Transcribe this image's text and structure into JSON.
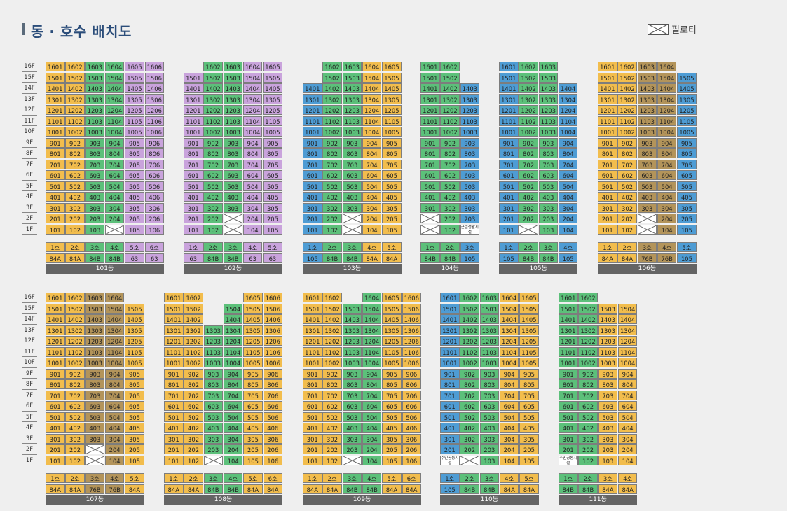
{
  "title": "동 · 호수 배치도",
  "legend": {
    "label": "필로티",
    "icon": "x-box-icon"
  },
  "floor_labels": [
    "16F",
    "15F",
    "14F",
    "13F",
    "12F",
    "11F",
    "10F",
    "9F",
    "8F",
    "7F",
    "6F",
    "5F",
    "4F",
    "3F",
    "2F",
    "1F"
  ],
  "colors": {
    "orange": "#f2bd4d",
    "green": "#5cc07a",
    "blue": "#4e9cd4",
    "purple": "#c9a3dc",
    "khaki": "#b3945a"
  },
  "buildings": [
    {
      "id": "101",
      "name": "101동",
      "units": [
        {
          "line": "1호",
          "type": "84A",
          "color": "o",
          "top": 16
        },
        {
          "line": "2호",
          "type": "84A",
          "color": "o",
          "top": 16
        },
        {
          "line": "3호",
          "type": "84B",
          "color": "g",
          "top": 16
        },
        {
          "line": "4호",
          "type": "84B",
          "color": "g",
          "top": 16,
          "piloti": [
            1
          ]
        },
        {
          "line": "5호",
          "type": "63",
          "color": "p",
          "top": 16
        },
        {
          "line": "6호",
          "type": "63",
          "color": "p",
          "top": 16
        }
      ]
    },
    {
      "id": "102",
      "name": "102동",
      "units": [
        {
          "line": "1호",
          "type": "63",
          "color": "p",
          "top": 15
        },
        {
          "line": "2호",
          "type": "84B",
          "color": "g",
          "top": 16
        },
        {
          "line": "3호",
          "type": "84B",
          "color": "g",
          "top": 16,
          "piloti": [
            1,
            2
          ]
        },
        {
          "line": "4호",
          "type": "63",
          "color": "p",
          "top": 16
        },
        {
          "line": "5호",
          "type": "63",
          "color": "p",
          "top": 16
        }
      ]
    },
    {
      "id": "103",
      "name": "103동",
      "units": [
        {
          "line": "1호",
          "type": "105",
          "color": "b",
          "top": 14
        },
        {
          "line": "2호",
          "type": "84B",
          "color": "g",
          "top": 16
        },
        {
          "line": "3호",
          "type": "84B",
          "color": "g",
          "top": 16,
          "piloti": [
            1,
            2
          ]
        },
        {
          "line": "4호",
          "type": "84A",
          "color": "o",
          "top": 16
        },
        {
          "line": "5호",
          "type": "84A",
          "color": "o",
          "top": 16
        }
      ]
    },
    {
      "id": "104",
      "name": "104동",
      "units": [
        {
          "line": "1호",
          "type": "84B",
          "color": "g",
          "top": 16,
          "piloti": [
            1,
            2
          ]
        },
        {
          "line": "2호",
          "type": "84B",
          "color": "g",
          "top": 16
        },
        {
          "line": "3호",
          "type": "105",
          "color": "b",
          "top": 14,
          "notes": {
            "1": "근린생활시설"
          }
        }
      ]
    },
    {
      "id": "105",
      "name": "105동",
      "units": [
        {
          "line": "1호",
          "type": "105",
          "color": "b",
          "top": 16
        },
        {
          "line": "2호",
          "type": "84B",
          "color": "g",
          "top": 16,
          "piloti": [
            1
          ]
        },
        {
          "line": "3호",
          "type": "84B",
          "color": "g",
          "top": 16
        },
        {
          "line": "4호",
          "type": "105",
          "color": "b",
          "top": 14
        }
      ]
    },
    {
      "id": "106",
      "name": "106동",
      "units": [
        {
          "line": "1호",
          "type": "84A",
          "color": "o",
          "top": 16
        },
        {
          "line": "2호",
          "type": "84A",
          "color": "o",
          "top": 16
        },
        {
          "line": "3호",
          "type": "76B",
          "color": "k",
          "top": 16,
          "piloti": [
            1,
            2
          ]
        },
        {
          "line": "4호",
          "type": "76B",
          "color": "k",
          "top": 16
        },
        {
          "line": "5호",
          "type": "105",
          "color": "b",
          "top": 15
        }
      ]
    },
    {
      "id": "107",
      "name": "107동",
      "units": [
        {
          "line": "1호",
          "type": "84A",
          "color": "o",
          "top": 16
        },
        {
          "line": "2호",
          "type": "84A",
          "color": "o",
          "top": 16
        },
        {
          "line": "3호",
          "type": "76B",
          "color": "k",
          "top": 16,
          "piloti": [
            1,
            2
          ]
        },
        {
          "line": "4호",
          "type": "76B",
          "color": "k",
          "top": 16
        },
        {
          "line": "5호",
          "type": "84A",
          "color": "o",
          "top": 15
        }
      ]
    },
    {
      "id": "108",
      "name": "108동",
      "units": [
        {
          "line": "1호",
          "type": "84A",
          "color": "o",
          "top": 16
        },
        {
          "line": "2호",
          "type": "84A",
          "color": "o",
          "top": 16
        },
        {
          "line": "3호",
          "type": "84B",
          "color": "g",
          "top": 13,
          "piloti": [
            1
          ]
        },
        {
          "line": "4호",
          "type": "84B",
          "color": "g",
          "top": 15
        },
        {
          "line": "5호",
          "type": "84A",
          "color": "o",
          "top": 16
        },
        {
          "line": "6호",
          "type": "84A",
          "color": "o",
          "top": 16
        }
      ]
    },
    {
      "id": "109",
      "name": "109동",
      "units": [
        {
          "line": "1호",
          "type": "84A",
          "color": "o",
          "top": 16
        },
        {
          "line": "2호",
          "type": "84A",
          "color": "o",
          "top": 16
        },
        {
          "line": "3호",
          "type": "84B",
          "color": "g",
          "top": 15,
          "piloti": [
            1
          ]
        },
        {
          "line": "4호",
          "type": "84B",
          "color": "g",
          "top": 16
        },
        {
          "line": "5호",
          "type": "84A",
          "color": "o",
          "top": 16
        },
        {
          "line": "6호",
          "type": "84A",
          "color": "o",
          "top": 16
        }
      ]
    },
    {
      "id": "110",
      "name": "110동",
      "units": [
        {
          "line": "1호",
          "type": "105",
          "color": "b",
          "top": 16,
          "notes": {
            "1": "주민공동시설"
          }
        },
        {
          "line": "2호",
          "type": "84B",
          "color": "g",
          "top": 16,
          "piloti": [
            1
          ]
        },
        {
          "line": "3호",
          "type": "84B",
          "color": "g",
          "top": 16
        },
        {
          "line": "4호",
          "type": "84A",
          "color": "o",
          "top": 16
        },
        {
          "line": "5호",
          "type": "84A",
          "color": "o",
          "top": 16
        }
      ]
    },
    {
      "id": "111",
      "name": "111동",
      "units": [
        {
          "line": "1호",
          "type": "84B",
          "color": "g",
          "top": 16,
          "notes": {
            "1": "주민공동시설"
          }
        },
        {
          "line": "2호",
          "type": "84B",
          "color": "g",
          "top": 16
        },
        {
          "line": "3호",
          "type": "84A",
          "color": "o",
          "top": 15
        },
        {
          "line": "4호",
          "type": "84A",
          "color": "o",
          "top": 15
        }
      ]
    }
  ]
}
